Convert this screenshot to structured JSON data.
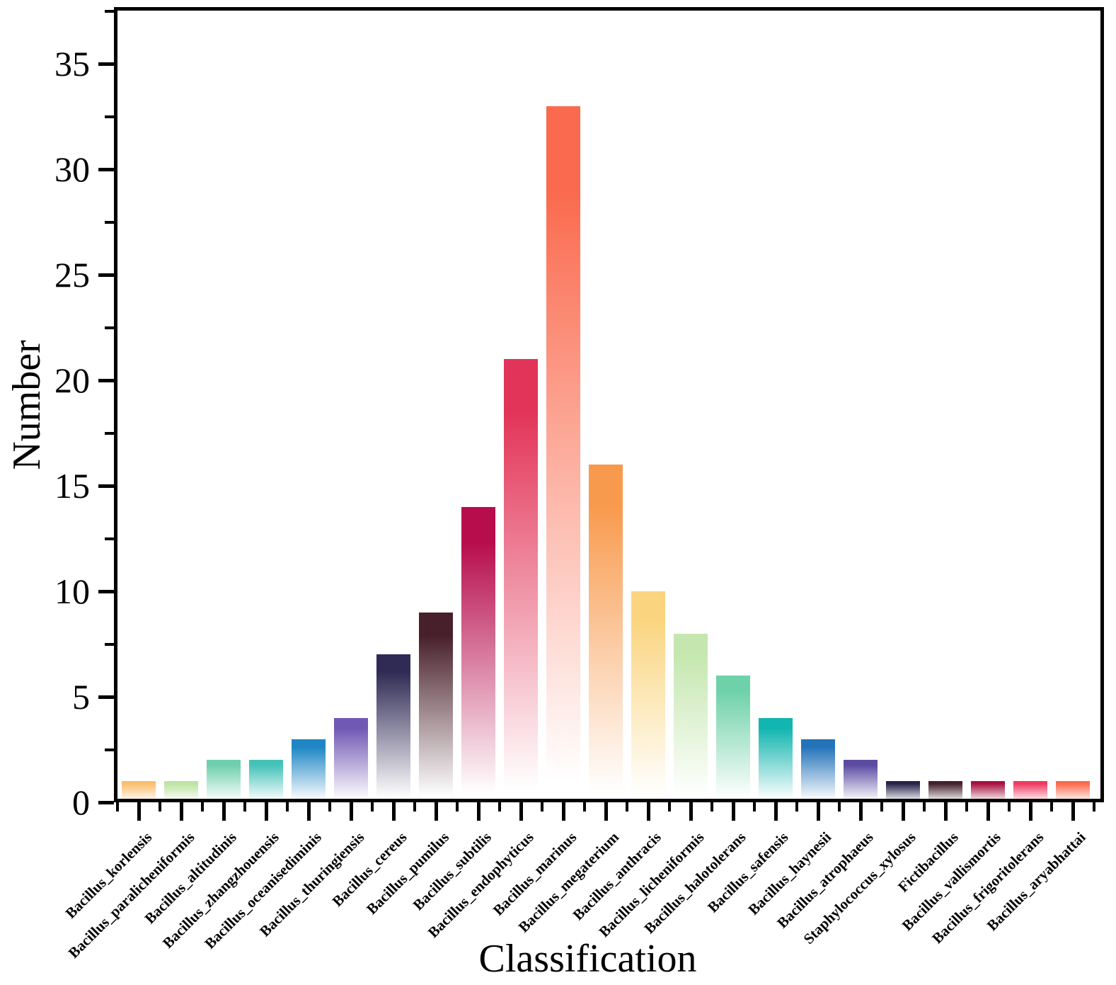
{
  "figure": {
    "background_color": "#ffffff",
    "text_color": "#000000"
  },
  "chart_data": {
    "type": "bar",
    "title": "",
    "xlabel": "Classification",
    "ylabel": "Number",
    "ylim": [
      0,
      37.5
    ],
    "yticks_major": [
      0,
      5,
      10,
      15,
      20,
      25,
      30,
      35
    ],
    "ytick_minor_interval": 2.5,
    "grid": false,
    "legend_position": "none",
    "bar_style": "each bar has a vertical gradient: solid color at top fading to white at the base",
    "categories": [
      "Bacillus_korlensis",
      "Bacillus_paralicheniformis",
      "Bacillus_altitudinis",
      "Bacillus_zhangzhouensis",
      "Bacillus_oceanisediminis",
      "Bacillus_thuringiensis",
      "Bacillus_cereus",
      "Bacillus_pumilus",
      "Bacillus_subtilis",
      "Bacillus_endophyticus",
      "Bacillus_marinus",
      "Bacillus_megaterium",
      "Bacillus_anthracis",
      "Bacillus_licheniformis",
      "Bacillus_halotolerans",
      "Bacillus_safensis",
      "Bacillus_haynesii",
      "Bacillus_atrophaeus",
      "Staphylococcus_xylosus",
      "Fictibacillus",
      "Bacillus_vallismortis",
      "Bacillus_frigoritolerans",
      "Bacillus_aryabhattai"
    ],
    "values": [
      1,
      1,
      2,
      2,
      3,
      4,
      7,
      9,
      14,
      21,
      33,
      16,
      10,
      8,
      6,
      4,
      3,
      2,
      1,
      1,
      1,
      1,
      1
    ],
    "bar_colors": [
      "#F9BE6E",
      "#BEE3A3",
      "#6FCFAD",
      "#44C2B8",
      "#1E86C4",
      "#7059B4",
      "#302B55",
      "#48202B",
      "#B70D4D",
      "#E23458",
      "#FA6A4E",
      "#F89A4D",
      "#FAD47E",
      "#C5E7AF",
      "#6FD1A9",
      "#12B5B0",
      "#2473B9",
      "#5C4BA2",
      "#26234A",
      "#44202B",
      "#A81140",
      "#EE3A61",
      "#FB6A4D"
    ]
  }
}
